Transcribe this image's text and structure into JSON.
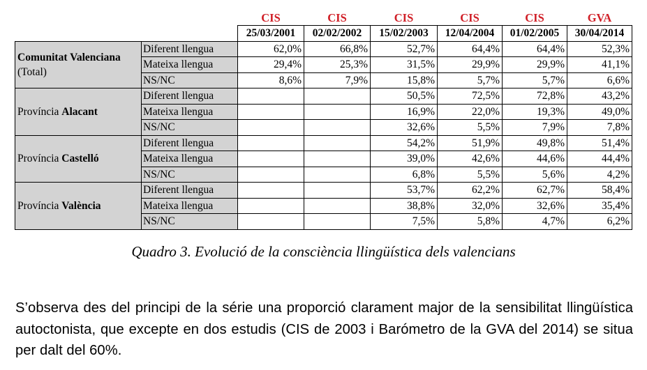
{
  "table": {
    "sources": [
      "CIS",
      "CIS",
      "CIS",
      "CIS",
      "CIS",
      "GVA"
    ],
    "dates": [
      "25/03/2001",
      "02/02/2002",
      "15/02/2003",
      "12/04/2004",
      "01/02/2005",
      "30/04/2014"
    ],
    "groups": [
      {
        "name_plain": "",
        "name_bold": "Comunitat Valenciana",
        "name_sub": "(Total)",
        "rows": [
          {
            "label": "Diferent llengua",
            "values": [
              "62,0%",
              "66,8%",
              "52,7%",
              "64,4%",
              "64,4%",
              "52,3%"
            ]
          },
          {
            "label": "Mateixa llengua",
            "values": [
              "29,4%",
              "25,3%",
              "31,5%",
              "29,9%",
              "29,9%",
              "41,1%"
            ]
          },
          {
            "label": "NS/NC",
            "values": [
              "8,6%",
              "7,9%",
              "15,8%",
              "5,7%",
              "5,7%",
              "6,6%"
            ]
          }
        ]
      },
      {
        "name_plain": "Província ",
        "name_bold": "Alacant",
        "name_sub": "",
        "rows": [
          {
            "label": "Diferent llengua",
            "values": [
              "",
              "",
              "50,5%",
              "72,5%",
              "72,8%",
              "43,2%"
            ]
          },
          {
            "label": "Mateixa llengua",
            "values": [
              "",
              "",
              "16,9%",
              "22,0%",
              "19,3%",
              "49,0%"
            ]
          },
          {
            "label": "NS/NC",
            "values": [
              "",
              "",
              "32,6%",
              "5,5%",
              "7,9%",
              "7,8%"
            ]
          }
        ]
      },
      {
        "name_plain": "Província ",
        "name_bold": "Castelló",
        "name_sub": "",
        "rows": [
          {
            "label": "Diferent llengua",
            "values": [
              "",
              "",
              "54,2%",
              "51,9%",
              "49,8%",
              "51,4%"
            ]
          },
          {
            "label": "Mateixa llengua",
            "values": [
              "",
              "",
              "39,0%",
              "42,6%",
              "44,6%",
              "44,4%"
            ]
          },
          {
            "label": "NS/NC",
            "values": [
              "",
              "",
              "6,8%",
              "5,5%",
              "5,6%",
              "4,2%"
            ]
          }
        ]
      },
      {
        "name_plain": "Província ",
        "name_bold": "València",
        "name_sub": "",
        "rows": [
          {
            "label": "Diferent llengua",
            "values": [
              "",
              "",
              "53,7%",
              "62,2%",
              "62,7%",
              "58,4%"
            ]
          },
          {
            "label": "Mateixa llengua",
            "values": [
              "",
              "",
              "38,8%",
              "32,0%",
              "32,6%",
              "35,4%"
            ]
          },
          {
            "label": "NS/NC",
            "values": [
              "",
              "",
              "7,5%",
              "5,8%",
              "4,7%",
              "6,2%"
            ]
          }
        ]
      }
    ]
  },
  "caption": "Quadro 3. Evolució de la consciència llingüística dels valencians",
  "paragraph": "S’observa des del principi de la série una proporció clarament major de la sensibilitat llingüística autoctonista, que excepte en dos estudis (CIS de 2003 i Barómetro de la GVA del 2014) se situa per dalt del 60%.",
  "colors": {
    "source_header": "#d01f27",
    "label_bg": "#d3d3d3"
  }
}
